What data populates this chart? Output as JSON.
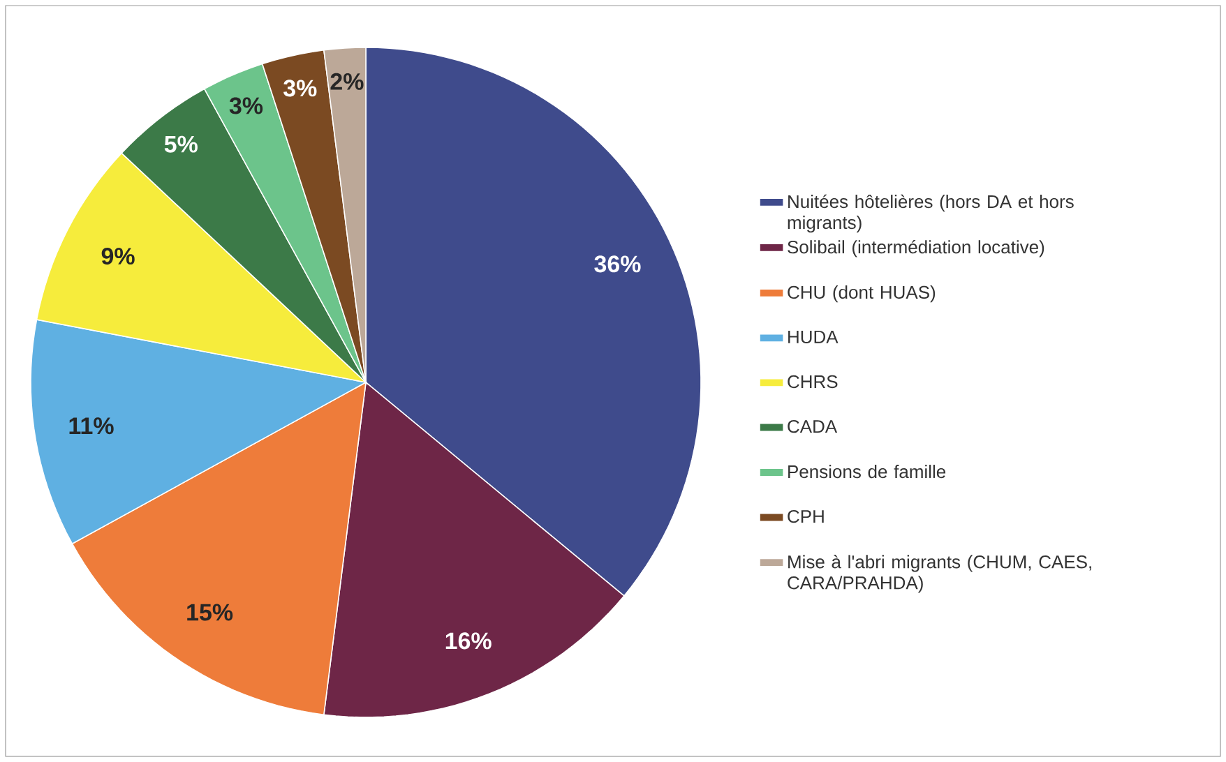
{
  "chart_data": {
    "type": "pie",
    "legend": "right",
    "data_labels": true,
    "categories": [
      "Nuitées hôtelières (hors DA et hors migrants)",
      "Solibail (intermédiation locative)",
      "CHU (dont HUAS)",
      "HUDA",
      "CHRS",
      "CADA",
      "Pensions de famille",
      "CPH",
      "Mise à l'abri migrants (CHUM, CAES, CARA/PRAHDA)"
    ],
    "values": [
      36,
      16,
      15,
      11,
      9,
      5,
      3,
      3,
      2
    ],
    "value_labels": [
      "36%",
      "16%",
      "15%",
      "11%",
      "9%",
      "5%",
      "3%",
      "3%",
      "2%"
    ],
    "colors": [
      "#3f4b8c",
      "#6e2647",
      "#ee7c3a",
      "#5fb0e2",
      "#f6ec3c",
      "#3c7a48",
      "#6cc48b",
      "#7b4a22",
      "#bca898"
    ]
  }
}
